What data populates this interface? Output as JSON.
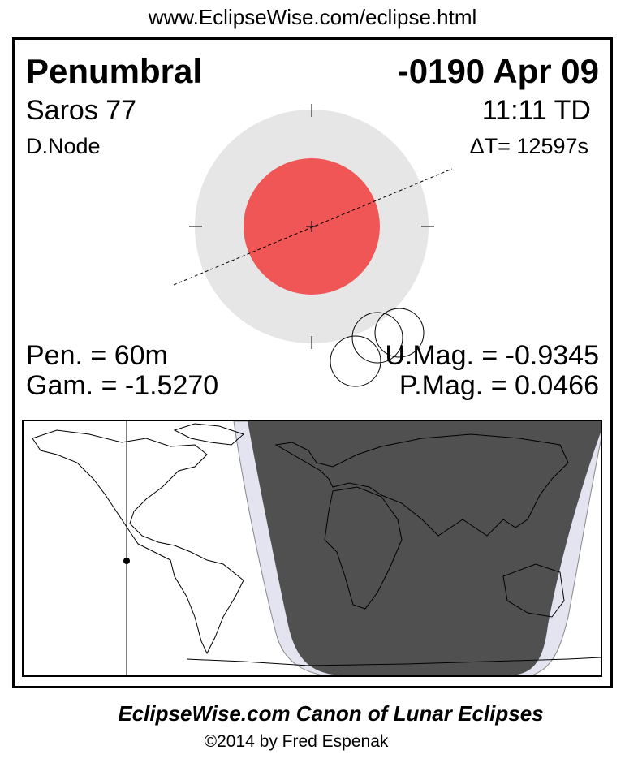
{
  "header_url": "www.EclipseWise.com/eclipse.html",
  "eclipse": {
    "type": "Penumbral",
    "date": "-0190 Apr 09",
    "saros": "Saros  77",
    "time": "11:11 TD",
    "node": "D.Node",
    "delta_t": "ΔT=  12597s",
    "pen_duration": "Pen. =  60m",
    "gamma": "Gam. = -1.5270",
    "umbral_mag": "U.Mag. = -0.9345",
    "penumbral_mag": "P.Mag. = 0.0466"
  },
  "colors": {
    "umbra": "#ef5655",
    "penumbra": "#e6e6e6",
    "night": "#505050",
    "penumbral_zone": "#e4e4f0"
  },
  "footer": {
    "title": "EclipseWise.com Canon of Lunar Eclipses",
    "copyright": "©2014 by Fred Espenak"
  }
}
